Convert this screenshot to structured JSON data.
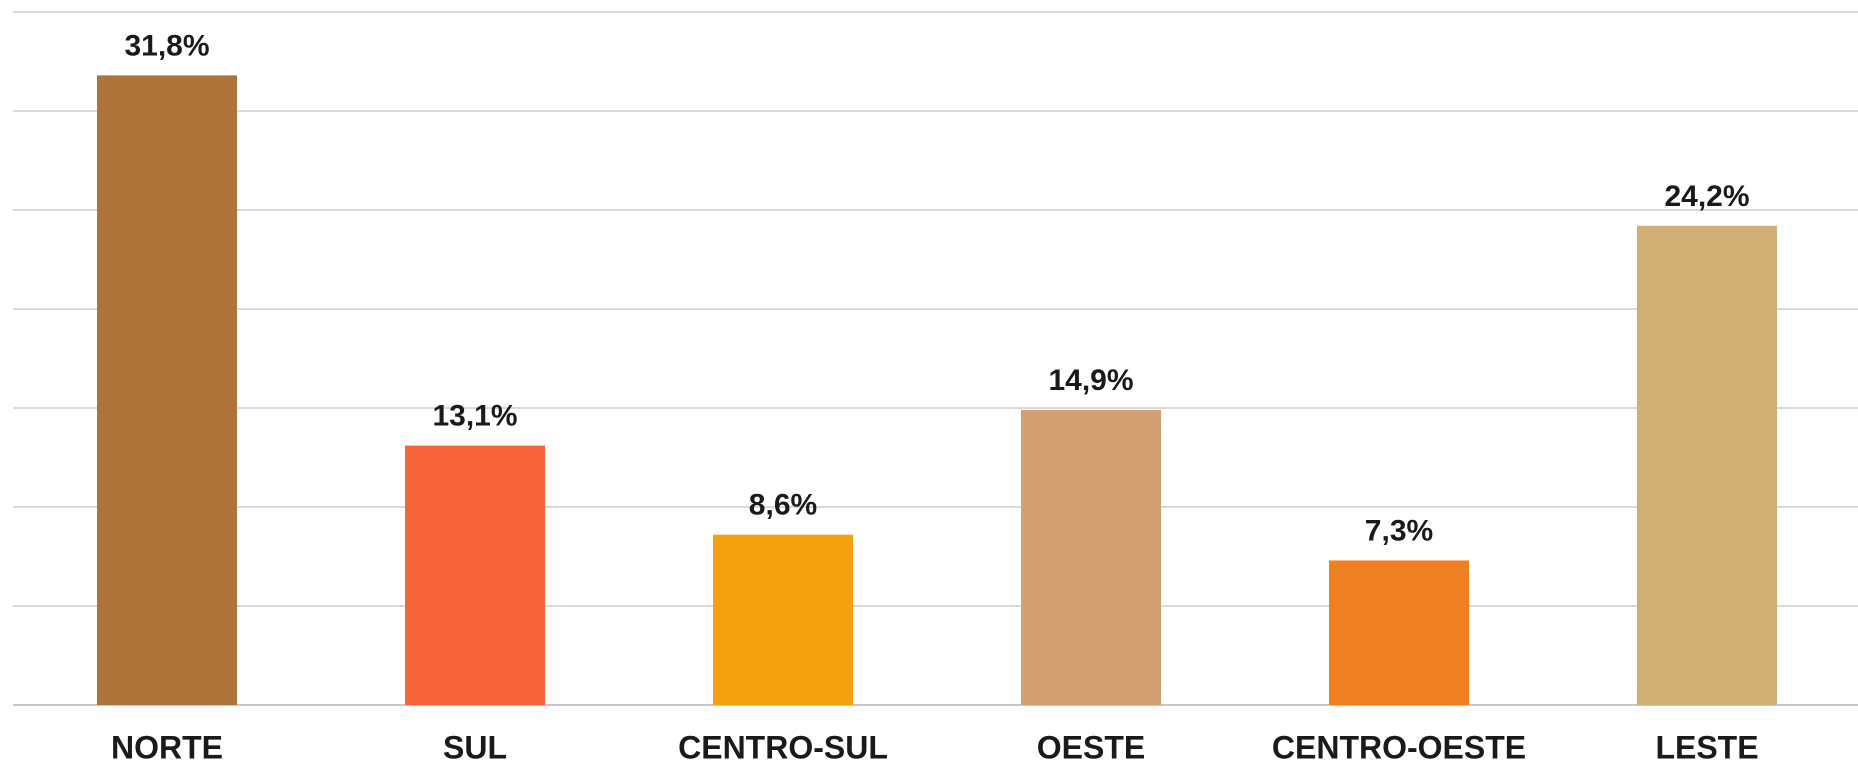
{
  "chart_data": {
    "type": "bar",
    "categories": [
      "NORTE",
      "SUL",
      "CENTRO-SUL",
      "OESTE",
      "CENTRO-OESTE",
      "LESTE"
    ],
    "values": [
      31.8,
      13.1,
      8.6,
      14.9,
      7.3,
      24.2
    ],
    "value_labels": [
      "31,8%",
      "13,1%",
      "8,6%",
      "14,9%",
      "7,3%",
      "24,2%"
    ],
    "colors": [
      "#ae7338",
      "#f9633a",
      "#f4a20f",
      "#d4a073",
      "#f07f22",
      "#d1ae74"
    ],
    "ylim": [
      0,
      35
    ],
    "yticks": [
      0,
      5,
      10,
      15,
      20,
      25,
      30,
      35
    ],
    "grid": true
  }
}
